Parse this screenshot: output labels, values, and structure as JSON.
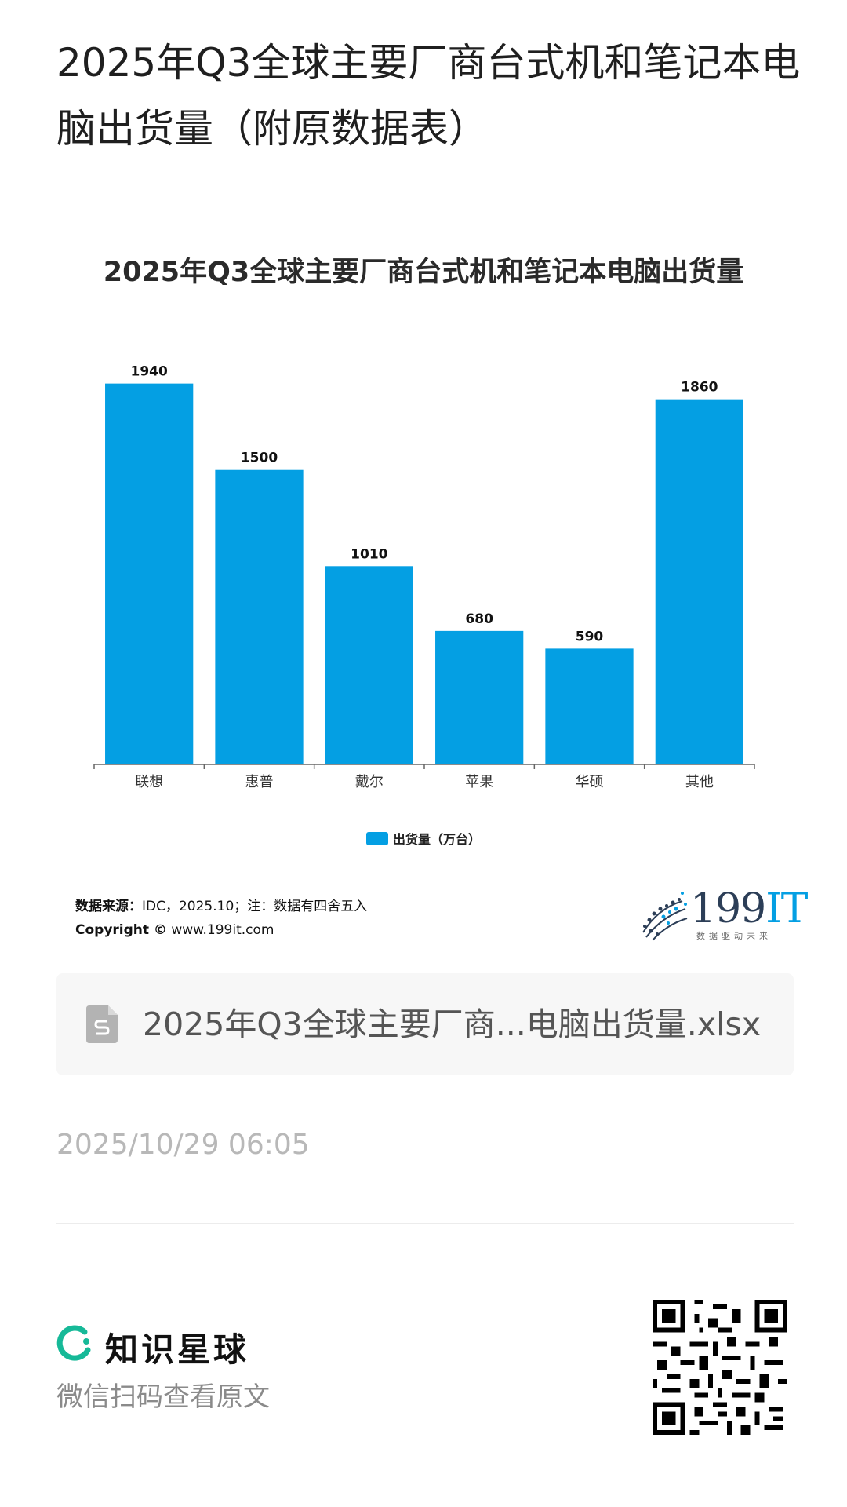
{
  "page": {
    "title": "2025年Q3全球主要厂商台式机和笔记本电脑出货量（附原数据表）"
  },
  "chart_data": {
    "type": "bar",
    "title": "2025年Q3全球主要厂商台式机和笔记本电脑出货量",
    "categories": [
      "联想",
      "惠普",
      "戴尔",
      "苹果",
      "华硕",
      "其他"
    ],
    "series": [
      {
        "name": "出货量（万台）",
        "values": [
          1940,
          1500,
          1010,
          680,
          590,
          1860
        ],
        "color": "#049fe3"
      }
    ],
    "ylim": [
      0,
      2000
    ],
    "grid": false,
    "legend": "bottom"
  },
  "source": {
    "label": "数据来源：",
    "text": "IDC，2025.10；注：数据有四舍五入",
    "copyright_label": "Copyright ©",
    "site": "www.199it.com"
  },
  "logo": {
    "num": "199",
    "it": "IT",
    "slogan": "数据驱动未来"
  },
  "file": {
    "name": "2025年Q3全球主要厂商...电脑出货量.xlsx",
    "icon": "spreadsheet-file-icon"
  },
  "timestamp": "2025/10/29 06:05",
  "footer": {
    "brand": "知识星球",
    "subtitle": "微信扫码查看原文",
    "brand_color": "#16b998"
  }
}
